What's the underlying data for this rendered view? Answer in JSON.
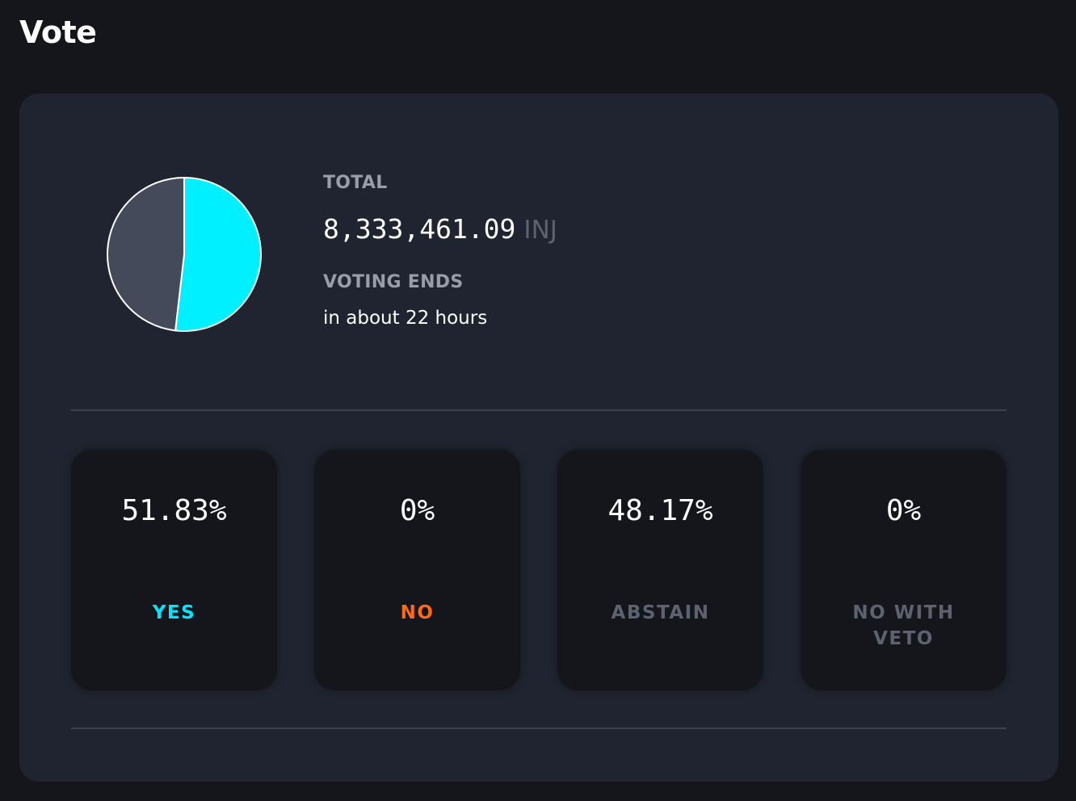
{
  "page": {
    "title": "Vote"
  },
  "summary": {
    "total_label": "TOTAL",
    "total_value": "8,333,461.09",
    "total_unit": "INJ",
    "voting_ends_label": "VOTING ENDS",
    "voting_ends_value": "in about 22 hours"
  },
  "pie": {
    "slices": [
      {
        "name": "Yes",
        "percent": 51.83,
        "color": "#00f0ff"
      },
      {
        "name": "No",
        "percent": 0,
        "color": "#ff6b00"
      },
      {
        "name": "Abstain",
        "percent": 48.17,
        "color": "#444a5a"
      },
      {
        "name": "No With Veto",
        "percent": 0,
        "color": "#7a7f8c"
      }
    ]
  },
  "options": [
    {
      "value": "51.83%",
      "label": "YES",
      "color": "#00e5ff"
    },
    {
      "value": "0%",
      "label": "NO",
      "color": "#ff6a10"
    },
    {
      "value": "48.17%",
      "label": "ABSTAIN",
      "color": "#5d6270"
    },
    {
      "value": "0%",
      "label": "NO WITH VETO",
      "color": "#5d6270"
    }
  ]
}
